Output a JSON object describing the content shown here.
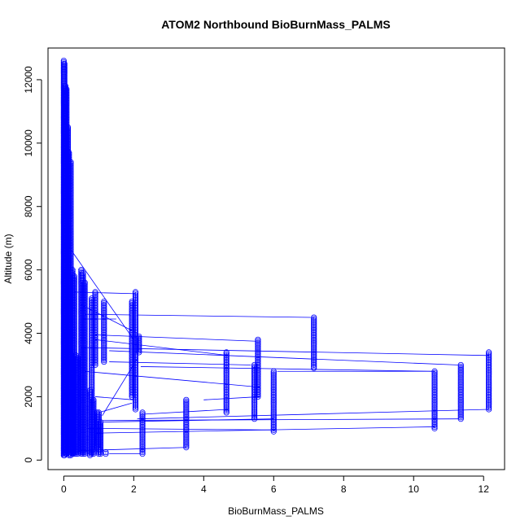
{
  "chart_data": {
    "type": "scatter",
    "title": "ATOM2 Northbound BioBurnMass_PALMS",
    "xlabel": "BioBurnMass_PALMS",
    "ylabel": "Altitude (m)",
    "xlim": [
      -0.45,
      12.6
    ],
    "ylim": [
      -300,
      13000
    ],
    "xticks": [
      0,
      2,
      4,
      6,
      8,
      10,
      12
    ],
    "yticks": [
      0,
      2000,
      4000,
      6000,
      8000,
      10000,
      12000
    ],
    "series_color": "#0000ff",
    "marker": "open-circle",
    "connected": true,
    "grid": false,
    "columns": [
      {
        "x": 0.0,
        "y_min": 150,
        "y_max": 12600
      },
      {
        "x": 0.02,
        "y_min": 150,
        "y_max": 12500
      },
      {
        "x": 0.05,
        "y_min": 200,
        "y_max": 11800
      },
      {
        "x": 0.08,
        "y_min": 200,
        "y_max": 11700
      },
      {
        "x": 0.12,
        "y_min": 300,
        "y_max": 10500
      },
      {
        "x": 0.15,
        "y_min": 150,
        "y_max": 9700
      },
      {
        "x": 0.2,
        "y_min": 150,
        "y_max": 9400
      },
      {
        "x": 0.25,
        "y_min": 200,
        "y_max": 6000
      },
      {
        "x": 0.3,
        "y_min": 200,
        "y_max": 5800
      },
      {
        "x": 0.35,
        "y_min": 200,
        "y_max": 3300
      },
      {
        "x": 0.4,
        "y_min": 200,
        "y_max": 3200
      },
      {
        "x": 0.5,
        "y_min": 200,
        "y_max": 6000
      },
      {
        "x": 0.55,
        "y_min": 200,
        "y_max": 5900
      },
      {
        "x": 0.6,
        "y_min": 200,
        "y_max": 5600
      },
      {
        "x": 0.75,
        "y_min": 150,
        "y_max": 2200
      },
      {
        "x": 0.8,
        "y_min": 200,
        "y_max": 5100
      },
      {
        "x": 0.85,
        "y_min": 200,
        "y_max": 1900
      },
      {
        "x": 0.9,
        "y_min": 3000,
        "y_max": 5300
      },
      {
        "x": 0.95,
        "y_min": 400,
        "y_max": 1500
      },
      {
        "x": 1.0,
        "y_min": 200,
        "y_max": 1500
      },
      {
        "x": 1.05,
        "y_min": 200,
        "y_max": 1200
      },
      {
        "x": 1.15,
        "y_min": 3100,
        "y_max": 5000
      },
      {
        "x": 1.2,
        "y_min": 200,
        "y_max": 250
      },
      {
        "x": 1.95,
        "y_min": 2000,
        "y_max": 5000
      },
      {
        "x": 2.05,
        "y_min": 1600,
        "y_max": 5300
      },
      {
        "x": 2.15,
        "y_min": 3400,
        "y_max": 3900
      },
      {
        "x": 2.25,
        "y_min": 200,
        "y_max": 1500
      },
      {
        "x": 3.5,
        "y_min": 400,
        "y_max": 1900
      },
      {
        "x": 4.65,
        "y_min": 1500,
        "y_max": 3400
      },
      {
        "x": 5.45,
        "y_min": 1300,
        "y_max": 3000
      },
      {
        "x": 5.55,
        "y_min": 2000,
        "y_max": 3800
      },
      {
        "x": 6.0,
        "y_min": 900,
        "y_max": 2800
      },
      {
        "x": 7.15,
        "y_min": 2900,
        "y_max": 4500
      },
      {
        "x": 10.6,
        "y_min": 1000,
        "y_max": 2800
      },
      {
        "x": 11.35,
        "y_min": 1300,
        "y_max": 3000
      },
      {
        "x": 12.15,
        "y_min": 1600,
        "y_max": 3400
      }
    ],
    "connectors": [
      [
        0.1,
        6800,
        2.0,
        3800
      ],
      [
        0.3,
        5300,
        2.05,
        5250
      ],
      [
        0.5,
        4900,
        2.1,
        4000
      ],
      [
        0.6,
        4600,
        7.15,
        4500
      ],
      [
        0.55,
        4450,
        1.5,
        4450
      ],
      [
        0.9,
        3950,
        5.5,
        3750
      ],
      [
        0.9,
        3800,
        4.7,
        3300
      ],
      [
        0.5,
        3550,
        12.15,
        3300
      ],
      [
        1.3,
        3450,
        11.3,
        3000
      ],
      [
        1.3,
        3100,
        5.35,
        3000
      ],
      [
        2.2,
        2950,
        10.6,
        2800
      ],
      [
        0.6,
        2800,
        5.6,
        2300
      ],
      [
        0.9,
        2000,
        2.0,
        1900
      ],
      [
        1.0,
        1500,
        1.95,
        1800
      ],
      [
        1.1,
        1400,
        2.1,
        3200
      ],
      [
        2.3,
        1450,
        4.7,
        1600
      ],
      [
        1.1,
        1250,
        11.3,
        1300
      ],
      [
        2.1,
        1300,
        12.15,
        1600
      ],
      [
        1.1,
        1200,
        6.0,
        1300
      ],
      [
        0.7,
        1000,
        6.05,
        950
      ],
      [
        0.9,
        850,
        10.6,
        1050
      ],
      [
        0.5,
        300,
        3.5,
        400
      ],
      [
        1.3,
        200,
        2.2,
        200
      ],
      [
        4.0,
        1900,
        5.6,
        2000
      ],
      [
        6.1,
        2800,
        10.6,
        2800
      ]
    ]
  }
}
